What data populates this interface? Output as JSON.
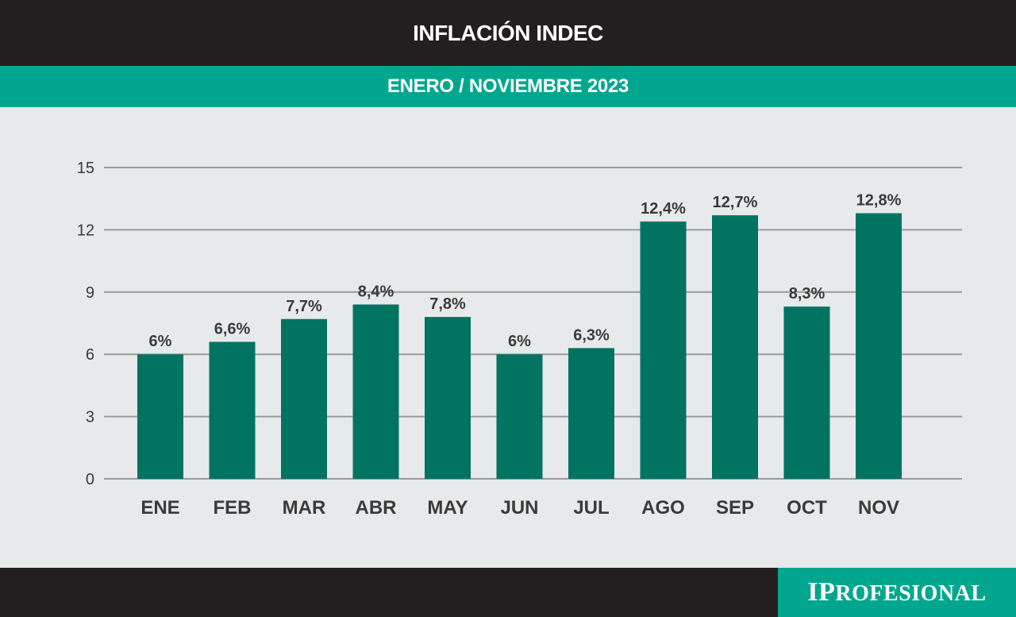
{
  "header": {
    "title": "INFLACIÓN INDEC",
    "subtitle": "ENERO / NOVIEMBRE 2023"
  },
  "footer": {
    "brand_lead": "IP",
    "brand_rest": "ROFESIONAL"
  },
  "colors": {
    "bar": "#007461",
    "accent": "#00a78e",
    "dark": "#231f20",
    "background": "#e8e9ea",
    "grid": "#9a9a9a",
    "text": "#3a3a3a"
  },
  "chart_data": {
    "type": "bar",
    "categories": [
      "ENE",
      "FEB",
      "MAR",
      "ABR",
      "MAY",
      "JUN",
      "JUL",
      "AGO",
      "SEP",
      "OCT",
      "NOV"
    ],
    "values": [
      6,
      6.6,
      7.7,
      8.4,
      7.8,
      6,
      6.3,
      12.4,
      12.7,
      8.3,
      12.8
    ],
    "data_labels": [
      "6%",
      "6,6%",
      "7,7%",
      "8,4%",
      "7,8%",
      "6%",
      "6,3%",
      "12,4%",
      "12,7%",
      "8,3%",
      "12,8%"
    ],
    "y_ticks": [
      0,
      3,
      6,
      9,
      12,
      15
    ],
    "ylim": [
      0,
      15
    ],
    "grid": true,
    "legend": "none"
  }
}
